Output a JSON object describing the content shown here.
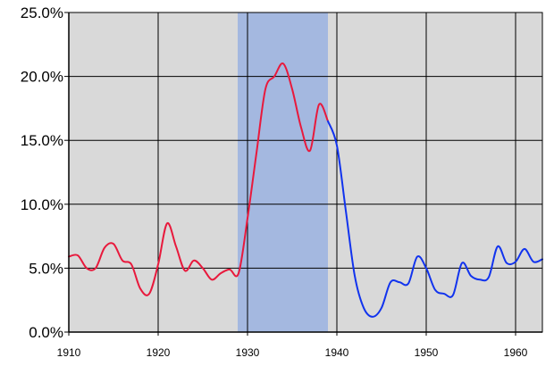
{
  "chart_data": {
    "type": "line",
    "title": "",
    "xlabel": "",
    "ylabel": "",
    "xlim": [
      1910,
      1963
    ],
    "ylim": [
      0,
      25
    ],
    "x_ticks": [
      1910,
      1920,
      1930,
      1940,
      1950,
      1960
    ],
    "x_tick_labels": [
      "1910",
      "1920",
      "1930",
      "1940",
      "1950",
      "1960"
    ],
    "y_ticks": [
      0,
      5,
      10,
      15,
      20,
      25
    ],
    "y_tick_labels": [
      "0.0%",
      "5.0%",
      "10.0%",
      "15.0%",
      "20.0%",
      "25.0%"
    ],
    "grid": true,
    "legend": "none",
    "colors": {
      "plot_background": "#d9d9d9",
      "highlight_band": "#a4b8e0",
      "grid": "#000000"
    },
    "highlight": {
      "x_start": 1928.9,
      "x_end": 1939.0
    },
    "series": [
      {
        "color": "#e8193c",
        "x": [
          1910,
          1911,
          1912,
          1913,
          1914,
          1915,
          1916,
          1917,
          1918,
          1919,
          1920,
          1921,
          1922,
          1923,
          1924,
          1925,
          1926,
          1927,
          1928,
          1929,
          1930,
          1931,
          1932,
          1933,
          1934,
          1935,
          1936,
          1937,
          1938,
          1939
        ],
        "values": [
          5.9,
          6.0,
          5.0,
          5.0,
          6.6,
          6.9,
          5.6,
          5.3,
          3.4,
          3.0,
          5.3,
          8.5,
          6.7,
          4.8,
          5.6,
          5.0,
          4.1,
          4.6,
          4.9,
          4.6,
          8.9,
          14.0,
          19.0,
          20.0,
          21.0,
          19.0,
          16.0,
          14.2,
          17.8,
          16.5
        ]
      },
      {
        "color": "#1133ee",
        "x": [
          1939,
          1940,
          1941,
          1942,
          1943,
          1944,
          1945,
          1946,
          1947,
          1948,
          1949,
          1950,
          1951,
          1952,
          1953,
          1954,
          1955,
          1956,
          1957,
          1958,
          1959,
          1960,
          1961,
          1962,
          1963
        ],
        "values": [
          16.5,
          14.6,
          9.5,
          4.4,
          1.9,
          1.2,
          1.9,
          3.9,
          3.9,
          3.8,
          5.9,
          5.0,
          3.3,
          3.0,
          2.9,
          5.4,
          4.4,
          4.1,
          4.3,
          6.7,
          5.4,
          5.5,
          6.5,
          5.5,
          5.7
        ]
      }
    ]
  }
}
